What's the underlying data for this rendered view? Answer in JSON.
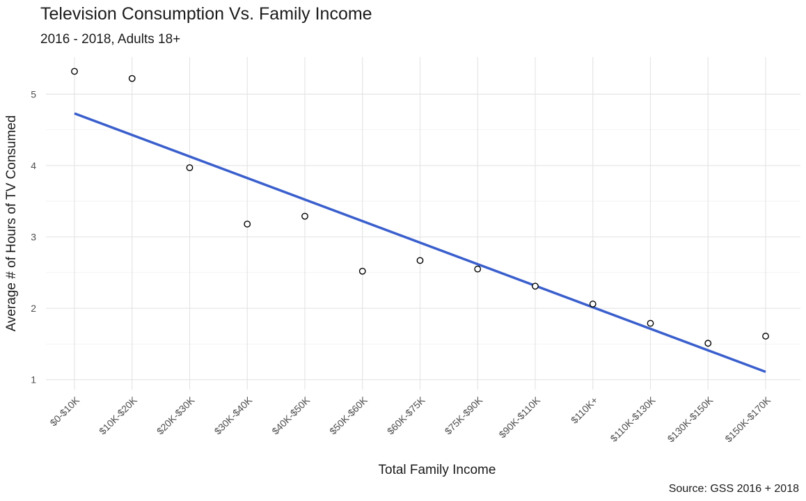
{
  "chart_data": {
    "type": "scatter",
    "title": "Television Consumption Vs. Family Income",
    "subtitle": "2016 - 2018, Adults 18+",
    "caption": "Source: GSS 2016 + 2018",
    "xlabel": "Total Family Income",
    "ylabel": "Average # of Hours of TV Consumed",
    "categories": [
      "$0-$10K",
      "$10K-$20K",
      "$20K-$30K",
      "$30K-$40K",
      "$40K-$50K",
      "$50K-$60K",
      "$60K-$75K",
      "$75K-$90K",
      "$90K-$110K",
      "$110K+",
      "$110K-$130K",
      "$130K-$150K",
      "$150K-$170K"
    ],
    "values": [
      5.32,
      5.22,
      3.97,
      3.18,
      3.29,
      2.52,
      2.67,
      2.55,
      2.31,
      2.06,
      1.79,
      1.51,
      1.61
    ],
    "yticks": [
      1,
      2,
      3,
      4,
      5
    ],
    "ylim": [
      0.86,
      5.52
    ],
    "trendline": {
      "type": "linear",
      "start": 4.73,
      "end": 1.11,
      "color": "#3a5fcd"
    },
    "grid": true,
    "legend": "none"
  }
}
